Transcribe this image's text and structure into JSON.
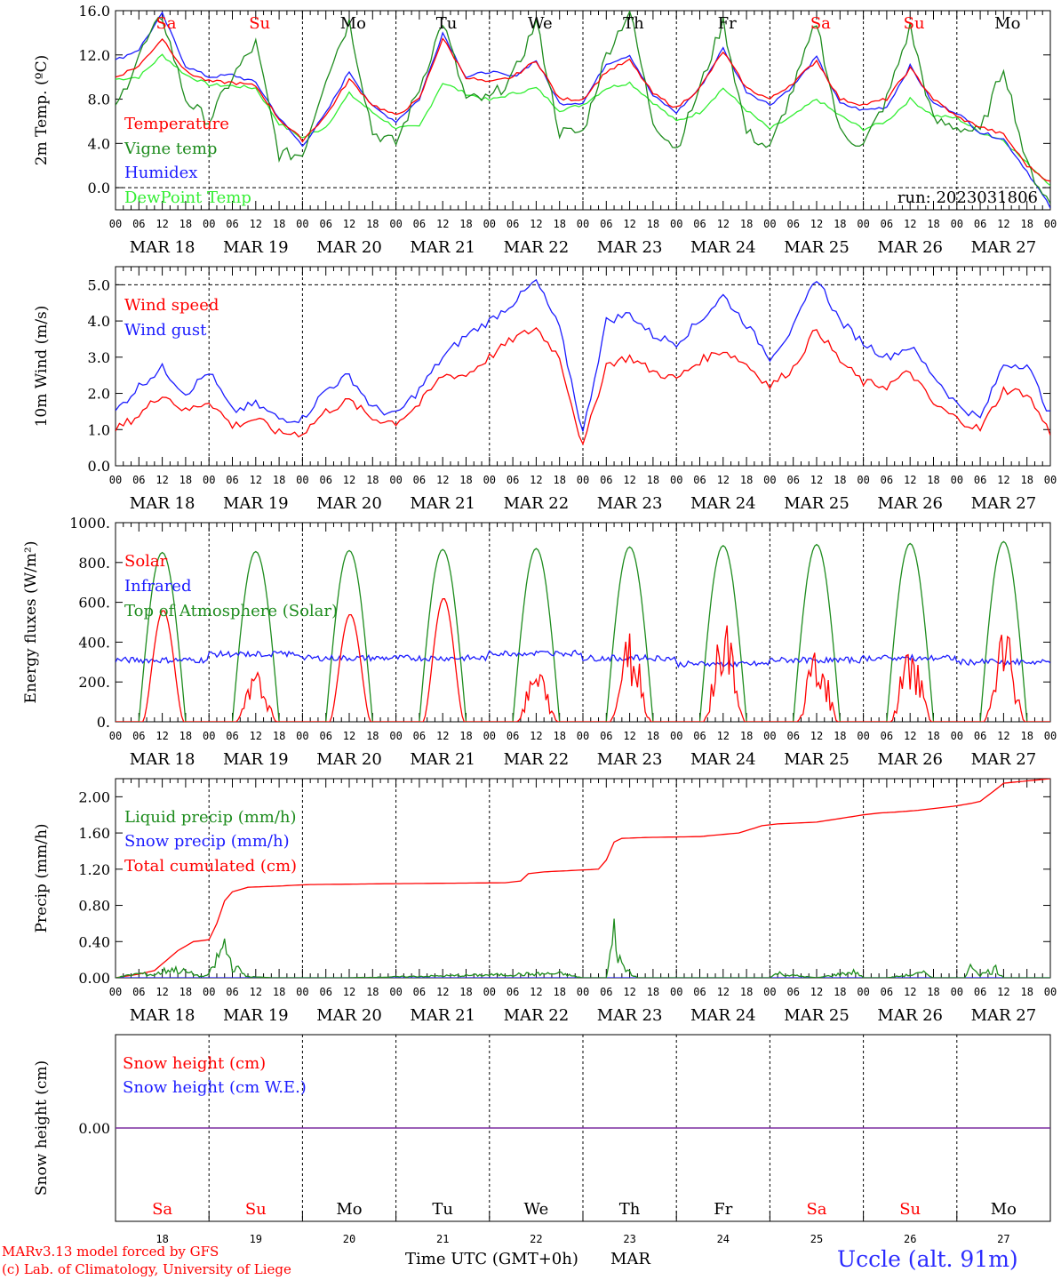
{
  "meta": {
    "run": "run: 2023031806",
    "model_line1": "MARv3.13 model forced by GFS",
    "model_line2": "(c) Lab. of Climatology, University of Liege",
    "time_axis_label": "Time UTC (GMT+0h)",
    "month": "MAR",
    "station": "Uccle (alt. 91m)"
  },
  "colors": {
    "red": "#ff0000",
    "green": "#1e8c1e",
    "blue": "#1c1cff",
    "light_green": "#33ee33",
    "purple": "#7b2ca0",
    "weekend": "#ff0000",
    "weekday": "#000000"
  },
  "days": [
    "Sa",
    "Su",
    "Mo",
    "Tu",
    "We",
    "Th",
    "Fr",
    "Sa",
    "Su",
    "Mo"
  ],
  "day_numbers": [
    "18",
    "19",
    "20",
    "21",
    "22",
    "23",
    "24",
    "25",
    "26",
    "27"
  ],
  "weekend_flags": [
    true,
    true,
    false,
    false,
    false,
    false,
    false,
    true,
    true,
    false
  ],
  "date_labels": [
    "MAR 18",
    "MAR 19",
    "MAR 20",
    "MAR 21",
    "MAR 22",
    "MAR 23",
    "MAR 24",
    "MAR 25",
    "MAR 26",
    "MAR 27"
  ],
  "hour_labels": [
    "00",
    "06",
    "12",
    "18"
  ],
  "hour_label_end": "00",
  "chart_data": [
    {
      "type": "line",
      "ylabel": "2m Temp. (ºC)",
      "ylim": [
        -2,
        16
      ],
      "yticks": [
        "0.0",
        "4.0",
        "8.0",
        "12.0",
        "16.0"
      ],
      "ytick_values": [
        0,
        4,
        8,
        12,
        16
      ],
      "dashed_lines": [
        0
      ],
      "x_unit": "hours since MAR 18 00 UTC",
      "series": [
        {
          "name": "Temperature",
          "color": "#ff0000",
          "x": [
            0,
            6,
            12,
            18,
            24,
            30,
            36,
            42,
            48,
            54,
            60,
            66,
            72,
            78,
            84,
            90,
            96,
            102,
            108,
            114,
            120,
            126,
            132,
            138,
            144,
            150,
            156,
            162,
            168,
            174,
            180,
            186,
            192,
            198,
            204,
            210,
            216,
            222,
            228,
            234,
            240
          ],
          "y": [
            10,
            11,
            13.5,
            10.5,
            9.6,
            9.5,
            9.2,
            6.2,
            4.3,
            6.5,
            9.8,
            7.5,
            6.5,
            8,
            13.5,
            10,
            9.5,
            10,
            11.5,
            8,
            8,
            10.5,
            11.5,
            8.5,
            7.2,
            9,
            12.3,
            9,
            8,
            9.5,
            11.5,
            8,
            7.5,
            8,
            10.8,
            8,
            6.4,
            5.5,
            4.8,
            2,
            0.5
          ]
        },
        {
          "name": "Vigne temp",
          "color": "#1e8c1e",
          "x": [
            0,
            6,
            12,
            18,
            24,
            30,
            36,
            42,
            48,
            54,
            60,
            66,
            72,
            78,
            84,
            90,
            96,
            102,
            108,
            114,
            120,
            126,
            132,
            138,
            144,
            150,
            156,
            162,
            168,
            174,
            180,
            186,
            192,
            198,
            204,
            210,
            216,
            222,
            228,
            234,
            240
          ],
          "y": [
            7,
            12,
            15.5,
            8,
            6,
            10,
            13,
            3,
            3,
            10,
            15,
            5,
            4,
            9,
            15,
            8,
            8,
            10,
            15,
            5,
            5,
            12,
            16,
            6,
            3.5,
            9,
            15,
            5,
            3.5,
            9,
            15,
            5,
            3.8,
            8,
            14.5,
            6,
            5.5,
            5,
            11,
            2,
            -1.5
          ]
        },
        {
          "name": "Humidex",
          "color": "#1c1cff",
          "x": [
            0,
            6,
            12,
            18,
            24,
            30,
            36,
            42,
            48,
            54,
            60,
            66,
            72,
            78,
            84,
            90,
            96,
            102,
            108,
            114,
            120,
            126,
            132,
            138,
            144,
            150,
            156,
            162,
            168,
            174,
            180,
            186,
            192,
            198,
            204,
            210,
            216,
            222,
            228,
            234,
            240
          ],
          "y": [
            11.5,
            12.5,
            15.7,
            11,
            10,
            10.2,
            9.5,
            6.3,
            3.8,
            6.7,
            10.5,
            7.3,
            6,
            8,
            14,
            10,
            10.5,
            10,
            11.5,
            7.6,
            7.7,
            11.2,
            12,
            8.3,
            6.8,
            9,
            12.6,
            8.7,
            7.5,
            9.2,
            11.8,
            7.6,
            7,
            7.3,
            11,
            7.6,
            6.8,
            5,
            4.4,
            1.5,
            -1.8
          ]
        },
        {
          "name": "DewPoint Temp",
          "color": "#33ee33",
          "x": [
            0,
            6,
            12,
            18,
            24,
            30,
            36,
            42,
            48,
            54,
            60,
            66,
            72,
            78,
            84,
            90,
            96,
            102,
            108,
            114,
            120,
            126,
            132,
            138,
            144,
            150,
            156,
            162,
            168,
            174,
            180,
            186,
            192,
            198,
            204,
            210,
            216,
            222,
            228,
            234,
            240
          ],
          "y": [
            9.8,
            10,
            12,
            10.2,
            9.3,
            9.2,
            9,
            5.8,
            4.5,
            5.5,
            8.5,
            6.8,
            5.4,
            5.5,
            9.5,
            8.5,
            7.9,
            8.5,
            9,
            7,
            7.5,
            9,
            9.5,
            7.7,
            6,
            6.8,
            9,
            7,
            5.3,
            6.5,
            8,
            6.5,
            5.3,
            6,
            8,
            6.5,
            6.3,
            5,
            4.3,
            2.2,
            0.3
          ]
        }
      ]
    },
    {
      "type": "line",
      "ylabel": "10m Wind (m/s)",
      "ylim": [
        0,
        5.5
      ],
      "yticks": [
        "0.0",
        "1.0",
        "2.0",
        "3.0",
        "4.0",
        "5.0"
      ],
      "ytick_values": [
        0,
        1,
        2,
        3,
        4,
        5
      ],
      "dashed_lines": [
        5
      ],
      "x_unit": "hours since MAR 18 00 UTC",
      "series": [
        {
          "name": "Wind speed",
          "color": "#ff0000",
          "x": [
            0,
            6,
            12,
            18,
            24,
            30,
            36,
            42,
            48,
            54,
            60,
            66,
            72,
            78,
            84,
            90,
            96,
            102,
            108,
            114,
            120,
            126,
            132,
            138,
            144,
            150,
            156,
            162,
            168,
            174,
            180,
            186,
            192,
            198,
            204,
            210,
            216,
            222,
            228,
            234,
            240
          ],
          "y": [
            1,
            1.4,
            2,
            1.5,
            1.8,
            1.1,
            1.3,
            0.9,
            0.9,
            1.5,
            1.8,
            1.3,
            1.2,
            1.7,
            2.5,
            2.5,
            3,
            3.5,
            3.8,
            3,
            0.5,
            2.8,
            3,
            2.6,
            2.4,
            2.9,
            3.2,
            2.8,
            2.2,
            2.7,
            3.8,
            2.9,
            2.3,
            2.2,
            2.6,
            1.7,
            1.3,
            1,
            2.1,
            2,
            0.9
          ]
        },
        {
          "name": "Wind gust",
          "color": "#1c1cff",
          "x": [
            0,
            6,
            12,
            18,
            24,
            30,
            36,
            42,
            48,
            54,
            60,
            66,
            72,
            78,
            84,
            90,
            96,
            102,
            108,
            114,
            120,
            126,
            132,
            138,
            144,
            150,
            156,
            162,
            168,
            174,
            180,
            186,
            192,
            198,
            204,
            210,
            216,
            222,
            228,
            234,
            240
          ],
          "y": [
            1.5,
            2.2,
            2.7,
            2,
            2.6,
            1.5,
            1.7,
            1.3,
            1.3,
            2.1,
            2.5,
            1.6,
            1.4,
            2.1,
            3,
            3.6,
            4,
            4.5,
            5.1,
            3.8,
            0.9,
            4,
            4.2,
            3.6,
            3.4,
            4,
            4.7,
            3.9,
            3,
            3.8,
            5.2,
            4,
            3.4,
            3,
            3.3,
            2.5,
            1.7,
            1.3,
            2.8,
            2.8,
            1.4
          ]
        }
      ]
    },
    {
      "type": "line",
      "ylabel": "Energy fluxes (W/m²)",
      "ylim": [
        0,
        1000
      ],
      "yticks": [
        "0.",
        "200.",
        "400.",
        "600.",
        "800.",
        "1000."
      ],
      "ytick_values": [
        0,
        200,
        400,
        600,
        800,
        1000
      ],
      "dashed_lines": [],
      "x_unit": "hours since MAR 18 00 UTC",
      "solar_peaks": [
        560,
        260,
        540,
        620,
        290,
        480,
        550,
        390,
        430,
        470
      ],
      "toa_peaks": [
        850,
        855,
        860,
        865,
        870,
        878,
        885,
        890,
        895,
        905
      ],
      "infrared_levels": [
        310,
        340,
        320,
        320,
        345,
        320,
        290,
        310,
        320,
        300
      ],
      "series": [
        {
          "name": "Solar",
          "color": "#ff0000"
        },
        {
          "name": "Infrared",
          "color": "#1c1cff"
        },
        {
          "name": "Top of Atmosphere (Solar)",
          "color": "#1e8c1e"
        }
      ]
    },
    {
      "type": "line",
      "ylabel": "Precip (mm/h)",
      "ylim": [
        0,
        2.2
      ],
      "yticks": [
        "0.00",
        "0.40",
        "0.80",
        "1.20",
        "1.60",
        "2.00"
      ],
      "ytick_values": [
        0,
        0.4,
        0.8,
        1.2,
        1.6,
        2.0
      ],
      "dashed_lines": [],
      "x_unit": "hours since MAR 18 00 UTC",
      "series": [
        {
          "name": "Liquid precip (mm/h)",
          "color": "#1e8c1e",
          "x": [
            0,
            6,
            10,
            14,
            18,
            22,
            24,
            28,
            30,
            34,
            40,
            60,
            114,
            120,
            126,
            128,
            130,
            134,
            140,
            168,
            170,
            172,
            180,
            190,
            192,
            198,
            208,
            210,
            218,
            220,
            222,
            226,
            228,
            232,
            240
          ],
          "y": [
            0,
            0.07,
            0.05,
            0.15,
            0.1,
            0.02,
            0.05,
            0.55,
            0.2,
            0.02,
            0,
            0,
            0.07,
            0,
            0,
            0.72,
            0.2,
            0,
            0,
            0,
            0.08,
            0.05,
            0,
            0.1,
            0,
            0,
            0.08,
            0,
            0,
            0.22,
            0.05,
            0.15,
            0,
            0,
            0
          ]
        },
        {
          "name": "Snow precip (mm/h)",
          "color": "#1c1cff",
          "x": [
            0,
            240
          ],
          "y": [
            0,
            0
          ]
        },
        {
          "name": "Total cumulated (cm)",
          "color": "#ff0000",
          "x": [
            0,
            6,
            10,
            16,
            20,
            24,
            26,
            28,
            30,
            34,
            40,
            50,
            72,
            100,
            104,
            106,
            110,
            124,
            126,
            128,
            130,
            136,
            150,
            160,
            166,
            170,
            180,
            192,
            196,
            200,
            206,
            216,
            220,
            222,
            226,
            228,
            240
          ],
          "y": [
            0,
            0.04,
            0.08,
            0.3,
            0.4,
            0.42,
            0.6,
            0.85,
            0.95,
            1.0,
            1.01,
            1.03,
            1.04,
            1.05,
            1.07,
            1.15,
            1.17,
            1.2,
            1.3,
            1.5,
            1.54,
            1.55,
            1.56,
            1.6,
            1.68,
            1.7,
            1.72,
            1.8,
            1.82,
            1.83,
            1.85,
            1.9,
            1.93,
            1.95,
            2.08,
            2.15,
            2.2
          ]
        }
      ]
    },
    {
      "type": "line",
      "ylabel": "Snow height (cm)",
      "ylim": [
        -1,
        1
      ],
      "yticks": [
        "0.00"
      ],
      "ytick_values": [
        0
      ],
      "dashed_lines": [],
      "x_unit": "hours since MAR 18 00 UTC",
      "series": [
        {
          "name": "Snow height (cm)",
          "color": "#ff0000",
          "x": [
            0,
            240
          ],
          "y": [
            0,
            0
          ]
        },
        {
          "name": "Snow height (cm W.E.)",
          "color": "#1c1cff",
          "x": [
            0,
            240
          ],
          "y": [
            0,
            0
          ]
        }
      ]
    }
  ]
}
